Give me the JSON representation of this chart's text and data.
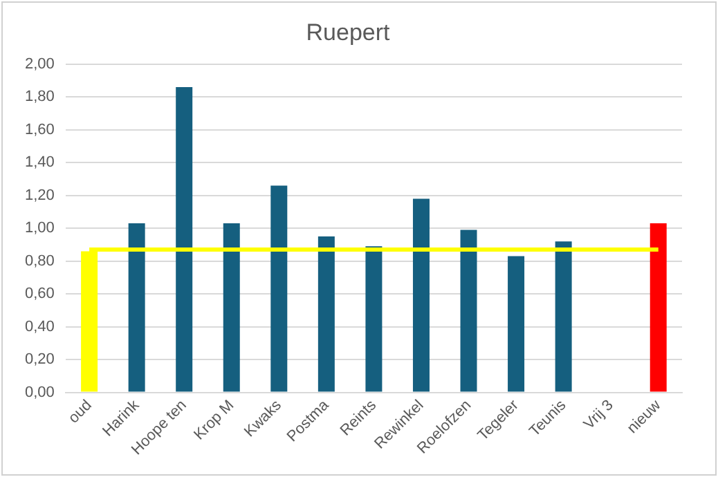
{
  "chart_data": {
    "type": "bar",
    "title": "Ruepert",
    "categories": [
      "oud",
      "Harink",
      "Hoope ten",
      "Krop M",
      "Kwaks",
      "Postma",
      "Reints",
      "Rewinkel",
      "Roelofzen",
      "Tegeler",
      "Teunis",
      "Vrij 3",
      "nieuw"
    ],
    "series": [
      {
        "colors": [
          "#ffff00",
          "#155f7f",
          "#155f7f",
          "#155f7f",
          "#155f7f",
          "#155f7f",
          "#155f7f",
          "#155f7f",
          "#155f7f",
          "#155f7f",
          "#155f7f",
          "#155f7f",
          "#ff0000"
        ],
        "values": [
          0.86,
          1.03,
          1.86,
          1.03,
          1.26,
          0.95,
          0.89,
          1.18,
          0.99,
          0.83,
          0.92,
          null,
          1.03
        ]
      },
      {
        "type": "line",
        "color": "#ffff00",
        "values": [
          0.87,
          0.87,
          0.87,
          0.87,
          0.87,
          0.87,
          0.87,
          0.87,
          0.87,
          0.87,
          0.87,
          0.87,
          0.87
        ]
      }
    ],
    "ylim": [
      0,
      2
    ],
    "yticks": [
      {
        "value": 0,
        "label": "0,00"
      },
      {
        "value": 0.2,
        "label": "0,20"
      },
      {
        "value": 0.4,
        "label": "0,40"
      },
      {
        "value": 0.6,
        "label": "0,60"
      },
      {
        "value": 0.8,
        "label": "0,80"
      },
      {
        "value": 1,
        "label": "1,00"
      },
      {
        "value": 1.2,
        "label": "1,20"
      },
      {
        "value": 1.4,
        "label": "1,40"
      },
      {
        "value": 1.6,
        "label": "1,60"
      },
      {
        "value": 1.8,
        "label": "1,80"
      },
      {
        "value": 2,
        "label": "2,00"
      }
    ],
    "grid": "y",
    "legend": false,
    "marker": "none",
    "line_style": "solid"
  }
}
